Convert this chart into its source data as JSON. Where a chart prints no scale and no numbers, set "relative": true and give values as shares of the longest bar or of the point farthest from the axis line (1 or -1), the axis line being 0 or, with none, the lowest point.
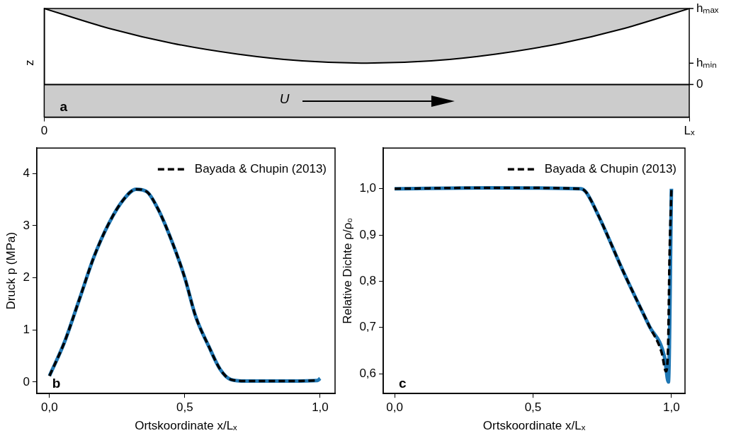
{
  "chart_data": [
    {
      "type": "area",
      "relative": true,
      "ylabel": "z",
      "annotations": [
        "a",
        "U",
        "hₘₐₓ",
        "hₘᵢₙ",
        "0"
      ],
      "categories": [
        "0",
        null,
        null,
        null,
        null,
        null,
        null,
        null,
        null,
        null,
        "Lₓ"
      ],
      "series": [
        {
          "color": "#cccccc",
          "values": [
            1,
            0.74,
            0.54,
            0.4,
            0.31,
            0.28,
            0.31,
            0.4,
            0.54,
            0.74,
            1
          ]
        }
      ],
      "bands": [
        {
          "axis": "y",
          "from": -0.43,
          "to": 0,
          "color": "#cccccc"
        }
      ],
      "grid": false,
      "legend": false,
      "marker": "none"
    },
    {
      "type": "line",
      "xlabel": "Ortskoordinate x/Lₓ",
      "ylabel": "Druck p (MPa)",
      "annotations": [
        "b"
      ],
      "series": [
        {
          "color": "#1f77b4",
          "line_style": "solid",
          "x": [
            0,
            0.055,
            0.11,
            0.165,
            0.22,
            0.275,
            0.32,
            0.36,
            0.4,
            0.45,
            0.5,
            0.54,
            0.59,
            0.63,
            0.67,
            0.725,
            0.8,
            0.9,
            0.99,
            1
          ],
          "values": [
            0.12,
            0.76,
            1.58,
            2.41,
            3.05,
            3.51,
            3.7,
            3.65,
            3.33,
            2.73,
            2,
            1.26,
            0.67,
            0.25,
            0.05,
            0.02,
            0.02,
            0.02,
            0.03,
            0.07
          ]
        },
        {
          "name": "Bayada & Chupin (2013)",
          "color": "#000000",
          "line_style": "dashed",
          "x": [
            0,
            0.055,
            0.11,
            0.165,
            0.22,
            0.275,
            0.32,
            0.36,
            0.4,
            0.45,
            0.5,
            0.54,
            0.59,
            0.63,
            0.67,
            0.725,
            0.8,
            0.9,
            0.99
          ],
          "values": [
            0.12,
            0.76,
            1.58,
            2.41,
            3.05,
            3.51,
            3.7,
            3.65,
            3.33,
            2.73,
            2,
            1.26,
            0.67,
            0.25,
            0.05,
            0.02,
            0.02,
            0.02,
            0.03
          ]
        }
      ],
      "xlim": [
        -0.047,
        1.055
      ],
      "xticks": [
        {
          "value": 0,
          "label": "0,0"
        },
        {
          "value": 0.5,
          "label": "0,5"
        },
        {
          "value": 1,
          "label": "1,0"
        }
      ],
      "ylim": [
        -0.22,
        4.49
      ],
      "yticks": [
        0,
        1,
        2,
        3,
        4
      ],
      "grid": false,
      "legend": "top right",
      "marker": "none"
    },
    {
      "type": "line",
      "xlabel": "Ortskoordinate x/Lₓ",
      "ylabel": "Relative Dichte ρ/ρ₀",
      "annotations": [
        "c"
      ],
      "series": [
        {
          "color": "#1f77b4",
          "line_style": "solid",
          "x": [
            0,
            0.343,
            0.673,
            0.691,
            0.737,
            0.829,
            0.92,
            0.975,
            0.989,
            1
          ],
          "values": [
            1,
            1.002,
            1,
            0.993,
            0.941,
            0.817,
            0.703,
            0.636,
            0.582,
            1
          ]
        },
        {
          "name": "Bayada & Chupin (2013)",
          "color": "#000000",
          "line_style": "dashed",
          "x": [
            0,
            0.343,
            0.673,
            0.691,
            0.737,
            0.829,
            0.92,
            0.965,
            0.98,
            0.988,
            0.993,
            1
          ],
          "values": [
            1,
            1.002,
            1,
            0.993,
            0.941,
            0.817,
            0.703,
            0.645,
            0.605,
            0.66,
            0.85,
            1
          ]
        }
      ],
      "xlim": [
        -0.041,
        1.049
      ],
      "xticks": [
        {
          "value": 0,
          "label": "0,0"
        },
        {
          "value": 0.5,
          "label": "0,5"
        },
        {
          "value": 1,
          "label": "1,0"
        }
      ],
      "ylim": [
        0.557,
        1.088
      ],
      "yticks": [
        {
          "value": 0.6,
          "label": "0,6"
        },
        {
          "value": 0.7,
          "label": "0,7"
        },
        {
          "value": 0.8,
          "label": "0,8"
        },
        {
          "value": 0.9,
          "label": "0,9"
        },
        {
          "value": 1,
          "label": "1,0"
        }
      ],
      "grid": false,
      "legend": "top right",
      "marker": "none"
    }
  ]
}
